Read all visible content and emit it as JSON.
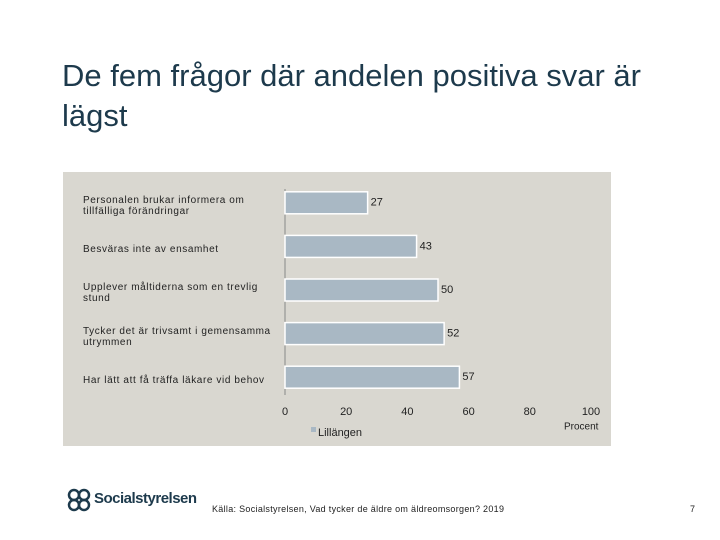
{
  "title": "De fem frågor där andelen positiva svar är lägst",
  "chart_data": {
    "type": "bar",
    "orientation": "horizontal",
    "categories": [
      "Personalen brukar informera om\ntillfälliga förändringar",
      "Besväras inte av ensamhet",
      "Upplever måltiderna som en trevlig\nstund",
      "Tycker det är trivsamt i gemensamma\nutrymmen",
      "Har lätt att få träffa läkare vid behov"
    ],
    "series": [
      {
        "name": "Lillängen",
        "color": "#a9b8c4",
        "values": [
          27,
          43,
          50,
          52,
          57
        ]
      }
    ],
    "xlim": [
      0,
      100
    ],
    "xticks": [
      0,
      20,
      40,
      60,
      80,
      100
    ],
    "xlabel": "Procent",
    "legend": "bottom"
  },
  "footer": {
    "logo": "Socialstyrelsen",
    "source": "Källa: Socialstyrelsen, Vad tycker de äldre om äldreomsorgen? 2019",
    "page": "7"
  }
}
